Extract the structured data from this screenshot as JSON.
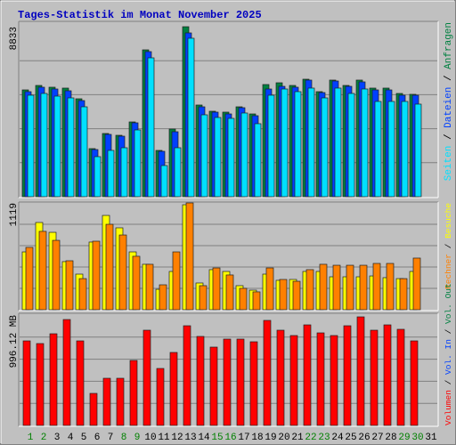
{
  "chart_data": [
    {
      "type": "bar",
      "title": "Tages-Statistik im Monat November 2025",
      "ylim": [
        0,
        8833
      ],
      "yticks": [
        8833
      ],
      "series": [
        {
          "name": "Anfragen",
          "color": "#008040",
          "values": [
            5550,
            5781,
            5689,
            5643,
            5088,
            2498,
            3284,
            3191,
            3885,
            7631,
            2405,
            3515,
            8833,
            4764,
            4440,
            4394,
            4671,
            4301,
            5828,
            5920,
            5781,
            6105,
            5458,
            6059,
            5781,
            6059,
            5643,
            5643,
            5365,
            5319,
            null
          ]
        },
        {
          "name": "Dateien",
          "color": "#0040ff",
          "values": [
            5458,
            5689,
            5596,
            5504,
            4995,
            2451,
            3238,
            3145,
            3839,
            7539,
            2359,
            3376,
            8510,
            4671,
            4394,
            4301,
            4625,
            4209,
            5596,
            5735,
            5689,
            6059,
            5411,
            6013,
            5735,
            5966,
            5550,
            5550,
            5273,
            5273,
            null
          ]
        },
        {
          "name": "Seiten",
          "color": "#00e0ff",
          "values": [
            5273,
            5365,
            5226,
            5134,
            4671,
            2081,
            2405,
            2544,
            3469,
            7215,
            1619,
            2544,
            8233,
            4255,
            4116,
            4070,
            4348,
            3793,
            5273,
            5596,
            5458,
            5643,
            5134,
            5643,
            5365,
            5596,
            4949,
            4949,
            4949,
            4810,
            null
          ]
        }
      ]
    },
    {
      "type": "bar",
      "ylim": [
        0,
        1119
      ],
      "yticks": [
        1119
      ],
      "series": [
        {
          "name": "Besuche",
          "color": "#ffff00",
          "values": [
            606,
            914,
            811,
            504,
            373,
            709,
            988,
            858,
            606,
            476,
            214,
            401,
            1100,
            280,
            420,
            401,
            252,
            205,
            373,
            308,
            317,
            401,
            401,
            345,
            345,
            345,
            354,
            336,
            326,
            401,
            null
          ]
        },
        {
          "name": "Rechner",
          "color": "#ff8000",
          "values": [
            653,
            821,
            727,
            513,
            326,
            718,
            895,
            783,
            560,
            476,
            261,
            606,
            1119,
            252,
            438,
            364,
            224,
            187,
            438,
            317,
            298,
            420,
            476,
            466,
            466,
            466,
            485,
            485,
            326,
            541,
            null
          ]
        }
      ]
    },
    {
      "type": "bar",
      "ylim": [
        0,
        996.12
      ],
      "yticks": [
        {
          "value": 996.12,
          "label": "996.12 MB"
        }
      ],
      "series": [
        {
          "name": "Volumen",
          "color": "#ff0000",
          "values": [
            763.1,
            739.0,
            827.4,
            955.9,
            763.1,
            289.2,
            425.7,
            425.7,
            586.4,
            859.5,
            514.1,
            658.7,
            899.7,
            803.3,
            706.9,
            779.2,
            779.2,
            755.1,
            947.9,
            859.5,
            811.3,
            907.7,
            835.4,
            811.3,
            899.7,
            980.0,
            859.5,
            907.7,
            867.6,
            763.1,
            null
          ]
        }
      ],
      "legend_extra": [
        {
          "name": "Vol. In",
          "color": "#0040ff"
        },
        {
          "name": "Vol. Out",
          "color": "#008040"
        }
      ],
      "categories": [
        1,
        2,
        3,
        4,
        5,
        6,
        7,
        8,
        9,
        10,
        11,
        12,
        13,
        14,
        15,
        16,
        17,
        18,
        19,
        20,
        21,
        22,
        23,
        24,
        25,
        26,
        27,
        28,
        29,
        30,
        31
      ],
      "category_colors": [
        "#008000",
        "#008000",
        "#000000",
        "#000000",
        "#000000",
        "#000000",
        "#000000",
        "#008000",
        "#008000",
        "#000000",
        "#000000",
        "#000000",
        "#000000",
        "#000000",
        "#008000",
        "#008000",
        "#000000",
        "#000000",
        "#000000",
        "#000000",
        "#000000",
        "#008000",
        "#008000",
        "#000000",
        "#000000",
        "#000000",
        "#000000",
        "#000000",
        "#008000",
        "#008000",
        "#000000"
      ]
    }
  ]
}
